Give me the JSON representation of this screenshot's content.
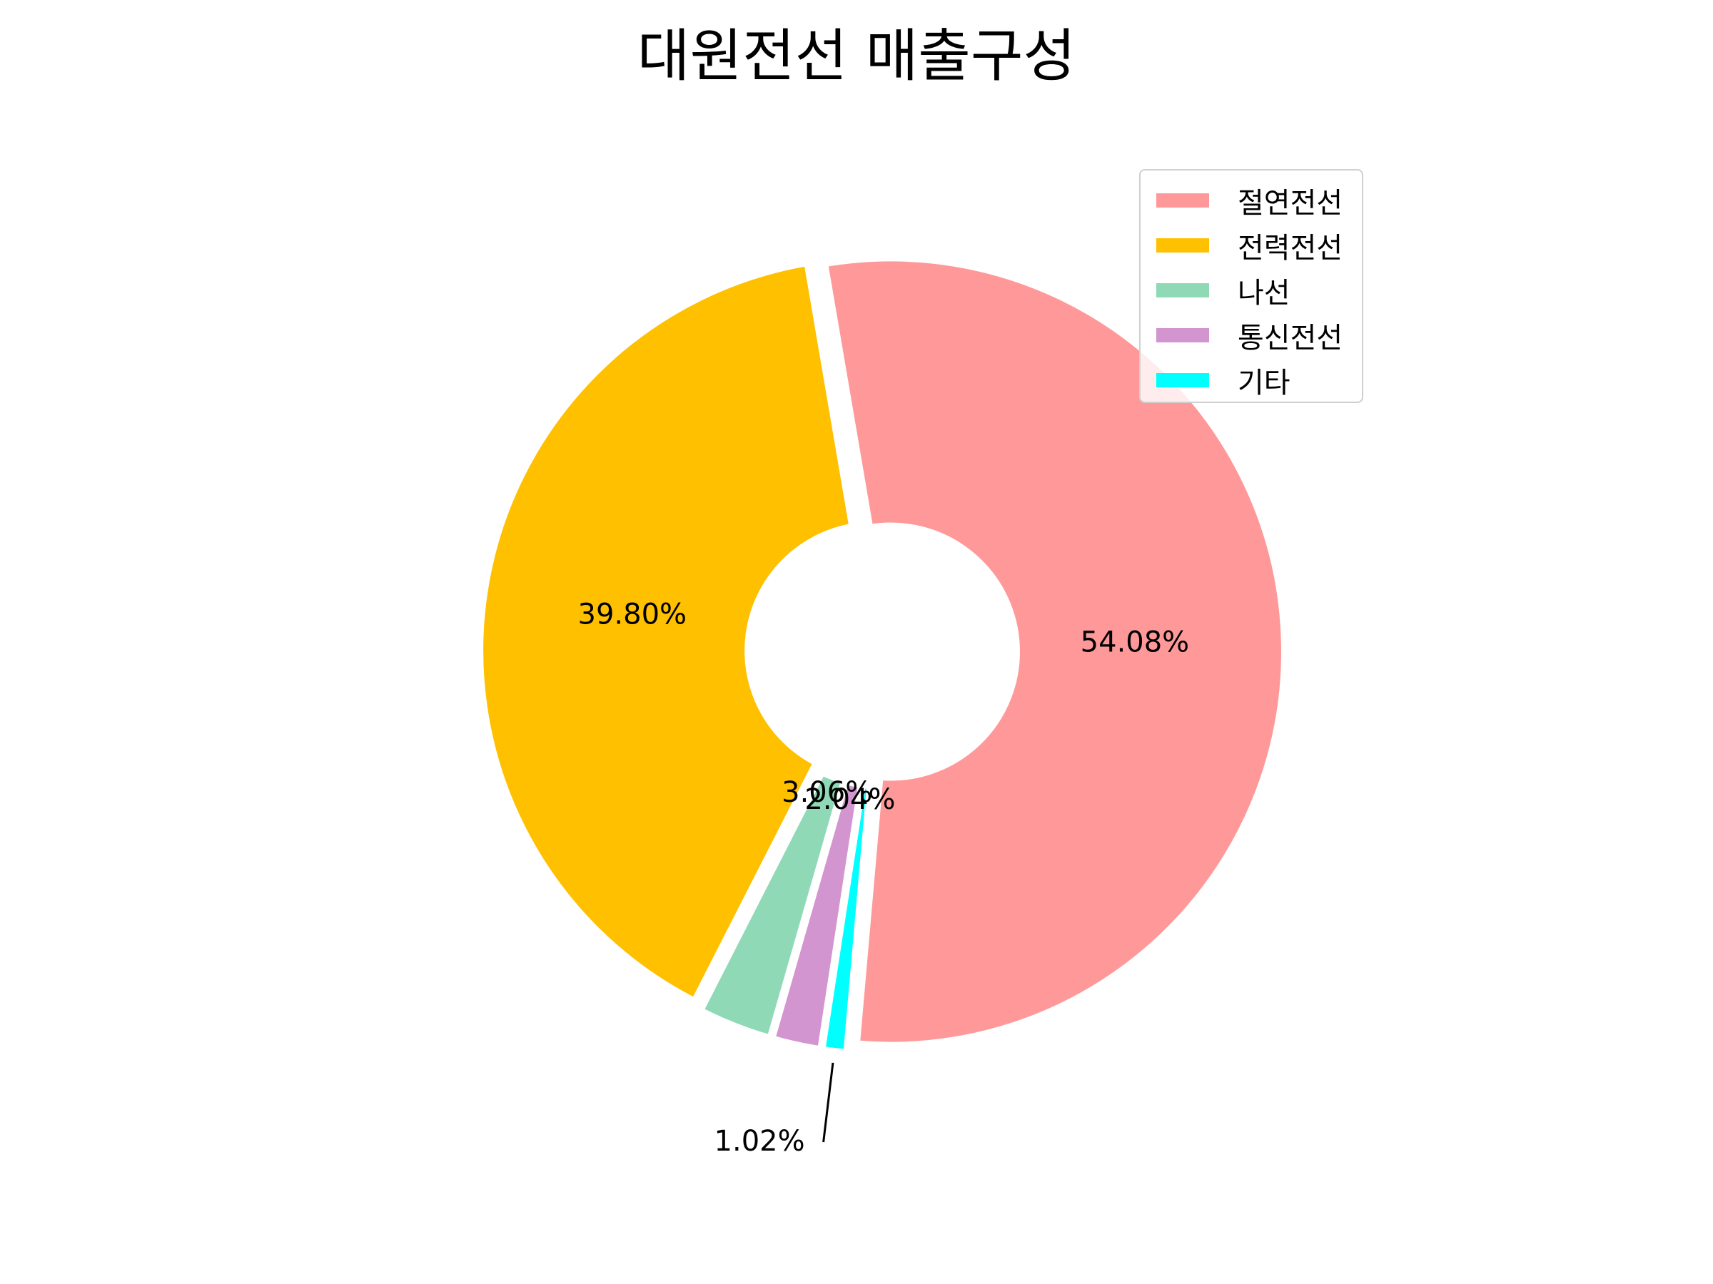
{
  "chart_data": {
    "type": "pie",
    "title": "대원전선 매출구성",
    "categories": [
      "절연전선",
      "전력전선",
      "나선",
      "통신전선",
      "기타"
    ],
    "values": [
      54.08,
      39.8,
      3.06,
      2.04,
      1.02
    ],
    "value_labels": [
      "54.08%",
      "39.80%",
      "3.06%",
      "2.04%",
      "1.02%"
    ],
    "colors": [
      "#ff9999",
      "#ffc000",
      "#8fd9b6",
      "#d395d0",
      "#00ffff"
    ],
    "donut": true,
    "legend_position": "top-right"
  }
}
